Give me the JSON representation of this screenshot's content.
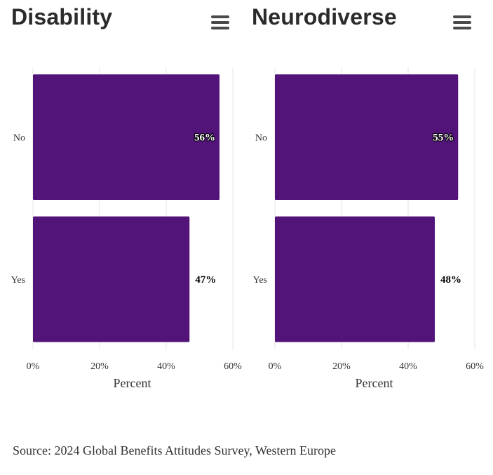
{
  "chart_data": [
    {
      "type": "bar",
      "orientation": "horizontal",
      "title": "Disability",
      "categories": [
        "No",
        "Yes"
      ],
      "values": [
        56,
        47
      ],
      "data_labels": [
        "56%",
        "47%"
      ],
      "xlabel": "Percent",
      "ylabel": "",
      "xlim": [
        0,
        60
      ],
      "xticks": [
        "0%",
        "20%",
        "40%",
        "60%"
      ],
      "grid": true,
      "bar_color": "#521479"
    },
    {
      "type": "bar",
      "orientation": "horizontal",
      "title": "Neurodiverse",
      "categories": [
        "No",
        "Yes"
      ],
      "values": [
        55,
        48
      ],
      "data_labels": [
        "55%",
        "48%"
      ],
      "xlabel": "Percent",
      "ylabel": "",
      "xlim": [
        0,
        60
      ],
      "xticks": [
        "0%",
        "20%",
        "40%",
        "60%"
      ],
      "grid": true,
      "bar_color": "#521479"
    }
  ],
  "menu_icon": "hamburger-menu-icon",
  "source": "Source: 2024 Global Benefits Attitudes Survey, Western Europe"
}
